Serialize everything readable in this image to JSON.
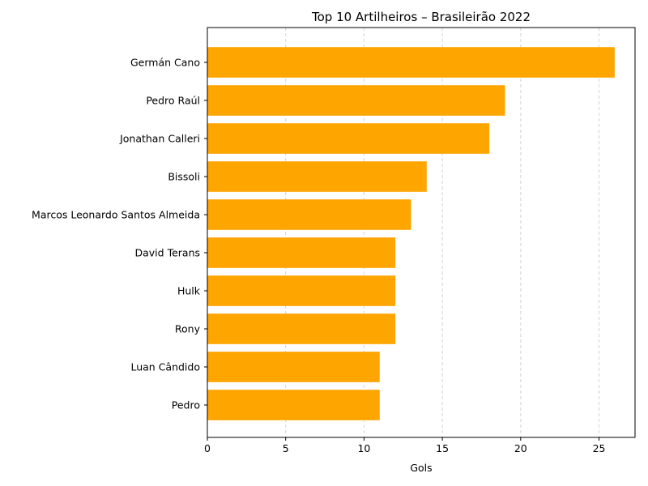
{
  "chart_data": {
    "type": "bar",
    "orientation": "horizontal",
    "title": "Top 10 Artilheiros – Brasileirão 2022",
    "xlabel": "Gols",
    "ylabel": "",
    "categories": [
      "Germán Cano",
      "Pedro Raúl",
      "Jonathan Calleri",
      "Bissoli",
      "Marcos Leonardo Santos Almeida",
      "David Terans",
      "Hulk",
      "Rony",
      "Luan Cândido",
      "Pedro"
    ],
    "values": [
      26,
      19,
      18,
      14,
      13,
      12,
      12,
      12,
      11,
      11
    ],
    "xlim": [
      0,
      27.3
    ],
    "xticks": [
      0,
      5,
      10,
      15,
      20,
      25
    ],
    "grid": {
      "x": true,
      "y": false,
      "style": "dashed"
    },
    "bar_color": "#FFA500",
    "legend": "none"
  }
}
